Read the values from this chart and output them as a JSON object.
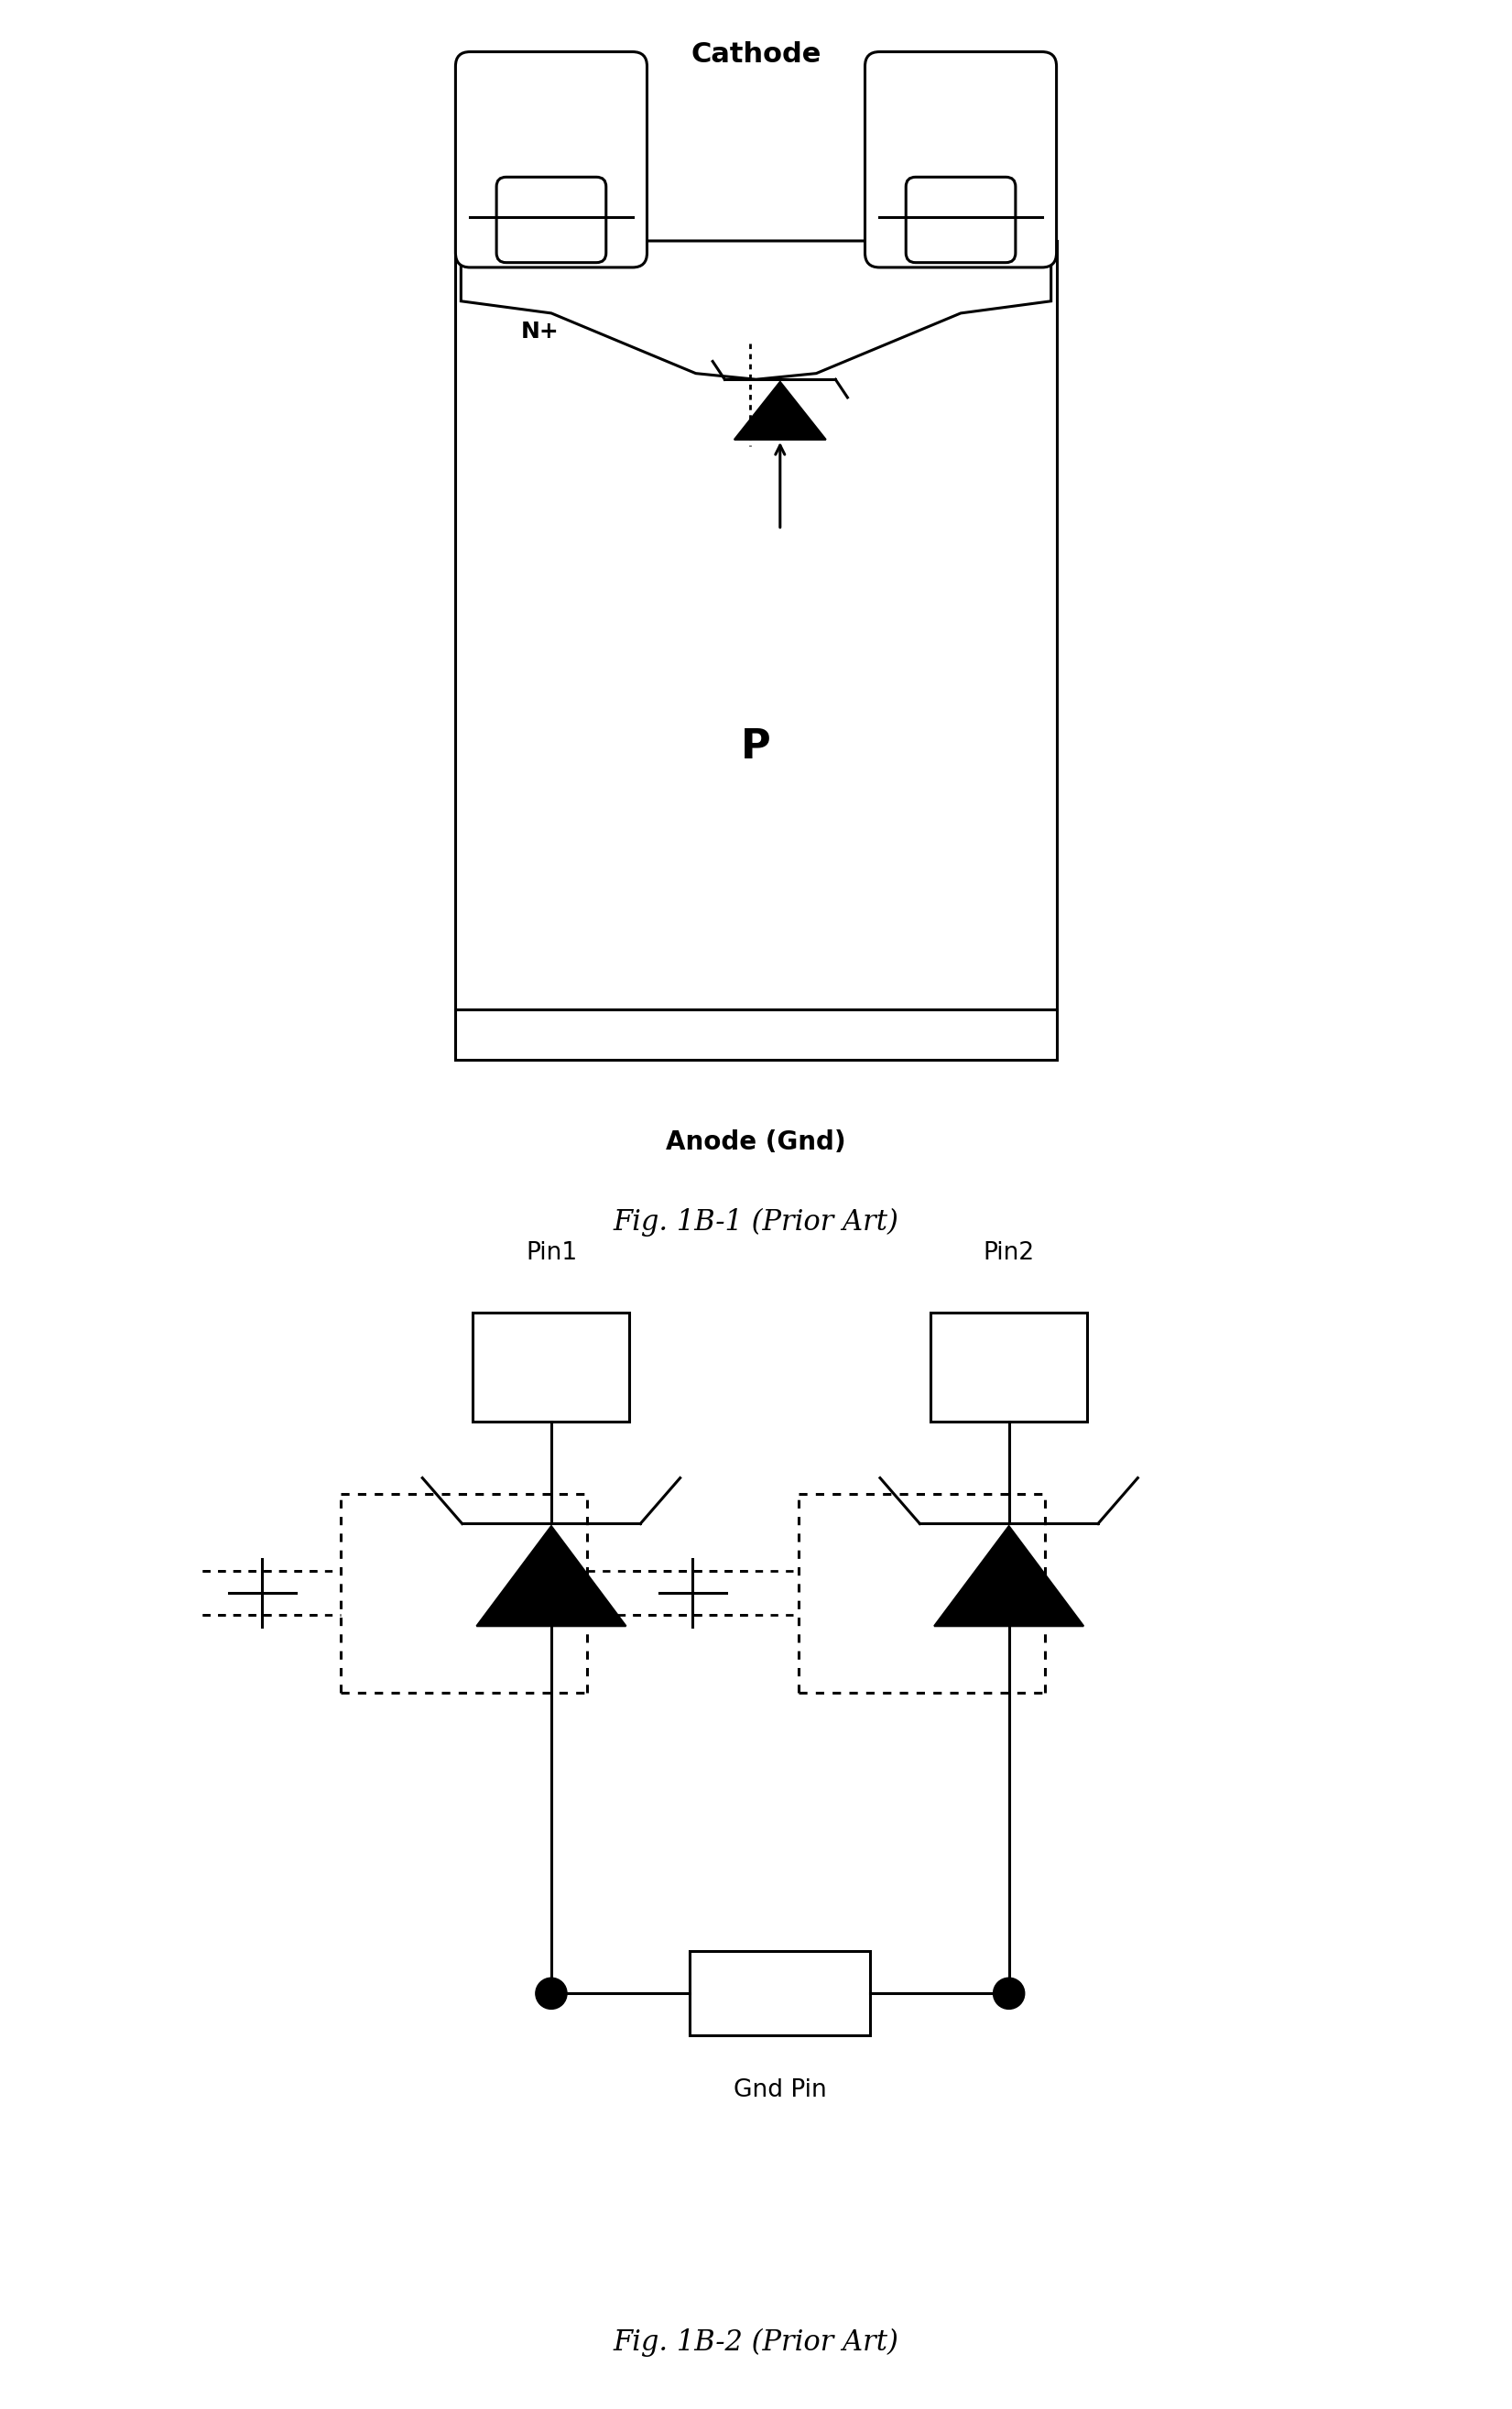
{
  "fig_width": 16.51,
  "fig_height": 26.3,
  "bg_color": "#ffffff",
  "fig1b1": {
    "title": "Cathode",
    "title_fontsize": 22,
    "title_bold": true,
    "subtitle": "Anode (Gnd)",
    "subtitle_fontsize": 20,
    "subtitle_bold": true,
    "caption": "Fig. 1B-1 (Prior Art)",
    "caption_fontsize": 22,
    "P_label": "P",
    "P_fontsize": 32,
    "N_label": "N+",
    "N_fontsize": 18
  },
  "fig1b2": {
    "pin1_label": "Pin1",
    "pin2_label": "Pin2",
    "gnd_label": "Gnd Pin",
    "caption": "Fig. 1B-2 (Prior Art)",
    "caption_fontsize": 22,
    "label_fontsize": 19
  }
}
